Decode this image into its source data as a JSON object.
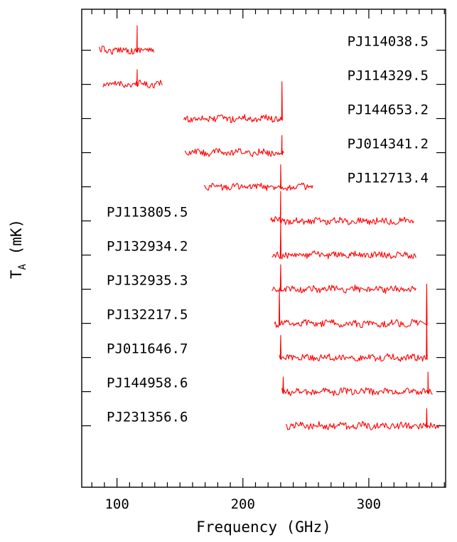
{
  "chart_data": {
    "type": "line",
    "xlabel": "Frequency (GHz)",
    "ylabel": "T",
    "ylabel_sub": "A",
    "ylabel_unit": "(mK)",
    "xlim": [
      72,
      361
    ],
    "x_ticks": [
      100,
      200,
      300
    ],
    "x_tick_labels": [
      "100",
      "200",
      "300"
    ],
    "grid": false,
    "line_color": "#ff0000",
    "series": [
      {
        "name": "PJ114038.5",
        "label_side": "right",
        "x_start": 86,
        "x_end": 130,
        "peaks": [
          {
            "x": 116,
            "height": 1.0
          }
        ]
      },
      {
        "name": "PJ114329.5",
        "label_side": "right",
        "x_start": 89,
        "x_end": 136,
        "peaks": [
          {
            "x": 116,
            "height": 0.6
          }
        ]
      },
      {
        "name": "PJ144653.2",
        "label_side": "right",
        "x_start": 153,
        "x_end": 231,
        "peaks": [
          {
            "x": 231,
            "height": 1.5
          }
        ]
      },
      {
        "name": "PJ014341.2",
        "label_side": "right",
        "x_start": 154,
        "x_end": 233,
        "peaks": [
          {
            "x": 231,
            "height": 0.7
          }
        ]
      },
      {
        "name": "PJ112713.4",
        "label_side": "right",
        "x_start": 169,
        "x_end": 256,
        "peaks": [
          {
            "x": 230,
            "height": 0.9
          }
        ]
      },
      {
        "name": "PJ113805.5",
        "label_side": "left",
        "x_start": 222,
        "x_end": 336,
        "peaks": [
          {
            "x": 230,
            "height": 1.2
          }
        ]
      },
      {
        "name": "PJ132934.2",
        "label_side": "left",
        "x_start": 223,
        "x_end": 338,
        "peaks": [
          {
            "x": 230,
            "height": 1.3
          }
        ]
      },
      {
        "name": "PJ132935.3",
        "label_side": "left",
        "x_start": 223,
        "x_end": 338,
        "peaks": [
          {
            "x": 230,
            "height": 1.0
          }
        ]
      },
      {
        "name": "PJ132217.5",
        "label_side": "left",
        "x_start": 225,
        "x_end": 341,
        "peaks": [
          {
            "x": 229,
            "height": 1.4
          },
          {
            "x": 346,
            "height": 1.6
          }
        ]
      },
      {
        "name": "PJ011646.7",
        "label_side": "left",
        "x_start": 229,
        "x_end": 347,
        "peaks": [
          {
            "x": 230,
            "height": 0.9
          },
          {
            "x": 346,
            "height": 1.8
          }
        ]
      },
      {
        "name": "PJ144958.6",
        "label_side": "left",
        "x_start": 231,
        "x_end": 351,
        "peaks": [
          {
            "x": 232,
            "height": 0.6
          },
          {
            "x": 347,
            "height": 0.8
          }
        ]
      },
      {
        "name": "PJ231356.6",
        "label_side": "left",
        "x_start": 234,
        "x_end": 357,
        "peaks": [
          {
            "x": 346,
            "height": 0.7
          }
        ]
      }
    ]
  }
}
